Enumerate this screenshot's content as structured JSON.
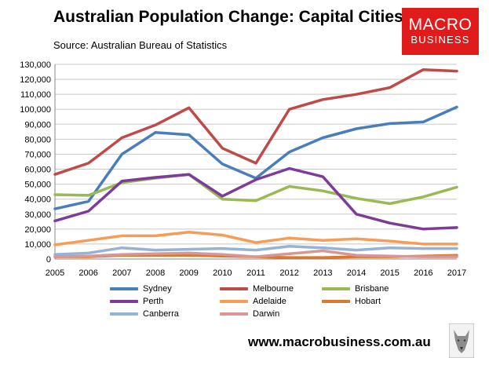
{
  "header": {
    "title": "Australian Population Change: Capital Cities",
    "source": "Source: Australian Bureau of Statistics"
  },
  "logo": {
    "line1": "MACRO",
    "line2": "BUSINESS",
    "color": "#e01b1b"
  },
  "footer": {
    "url": "www.macrobusiness.com.au"
  },
  "chart_data": {
    "type": "line",
    "title": "Australian Population Change: Capital Cities",
    "x": [
      "2005",
      "2006",
      "2007",
      "2008",
      "2009",
      "2010",
      "2011",
      "2012",
      "2013",
      "2014",
      "2015",
      "2016",
      "2017"
    ],
    "ylim": [
      0,
      130000
    ],
    "yticks": [
      0,
      10000,
      20000,
      30000,
      40000,
      50000,
      60000,
      70000,
      80000,
      90000,
      100000,
      110000,
      120000,
      130000
    ],
    "ytick_labels": [
      "0",
      "10,000",
      "20,000",
      "30,000",
      "40,000",
      "50,000",
      "60,000",
      "70,000",
      "80,000",
      "90,000",
      "100,000",
      "110,000",
      "120,000",
      "130,000"
    ],
    "grid": true,
    "legend_position": "bottom",
    "series": [
      {
        "name": "Sydney",
        "color": "#4a7ebb",
        "values": [
          33500,
          38500,
          70000,
          84500,
          83000,
          63500,
          54000,
          71500,
          81000,
          87000,
          90500,
          91500,
          101500
        ]
      },
      {
        "name": "Melbourne",
        "color": "#be4b48",
        "values": [
          56500,
          64000,
          81000,
          89500,
          101000,
          74000,
          64000,
          100000,
          106500,
          110000,
          114500,
          126500,
          125500
        ]
      },
      {
        "name": "Brisbane",
        "color": "#98b954",
        "values": [
          43000,
          42500,
          51000,
          54000,
          56500,
          40000,
          39000,
          48500,
          45500,
          40500,
          37000,
          41500,
          48000
        ]
      },
      {
        "name": "Perth",
        "color": "#7d3c98",
        "values": [
          25500,
          32000,
          52000,
          54500,
          56500,
          42000,
          53000,
          60500,
          55000,
          30000,
          24000,
          20000,
          21000
        ]
      },
      {
        "name": "Adelaide",
        "color": "#f59d56",
        "values": [
          9500,
          12500,
          15500,
          15500,
          18000,
          16000,
          11000,
          14000,
          12500,
          13500,
          12000,
          10000,
          10000
        ]
      },
      {
        "name": "Hobart",
        "color": "#d9792b",
        "values": [
          1500,
          1500,
          2500,
          2500,
          2500,
          2000,
          1500,
          1000,
          1000,
          1500,
          1500,
          2000,
          2500
        ]
      },
      {
        "name": "Canberra",
        "color": "#95b3d7",
        "values": [
          3000,
          4000,
          7500,
          6000,
          6500,
          7000,
          6000,
          8500,
          7500,
          6000,
          7500,
          7000,
          7000
        ]
      },
      {
        "name": "Darwin",
        "color": "#d99694",
        "values": [
          1500,
          2000,
          3000,
          3500,
          4000,
          3000,
          1500,
          3500,
          5500,
          2500,
          2000,
          1500,
          1500
        ]
      }
    ]
  }
}
